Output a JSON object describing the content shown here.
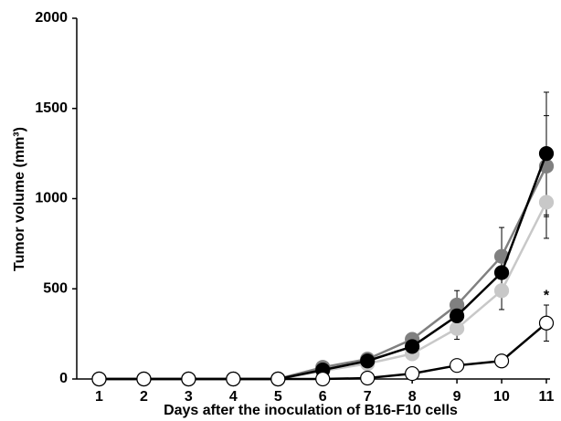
{
  "chart_data": {
    "type": "line",
    "x_label": "Days after the inoculation of B16-F10 cells",
    "y_label": "Tumor volume (mm³)",
    "x": [
      1,
      2,
      3,
      4,
      5,
      6,
      7,
      8,
      9,
      10,
      11
    ],
    "xlim": [
      0.5,
      11
    ],
    "xticks": [
      1,
      2,
      3,
      4,
      5,
      6,
      7,
      8,
      9,
      10,
      11
    ],
    "ylim": [
      0,
      2000
    ],
    "yticks": [
      0,
      500,
      1000,
      1500,
      2000
    ],
    "series": [
      {
        "color": "#c8c8c8",
        "line_color": "#c8c8c8",
        "values": [
          0,
          0,
          0,
          0,
          0,
          45,
          85,
          140,
          280,
          490,
          980
        ],
        "errors": [
          0,
          0,
          0,
          0,
          0,
          10,
          15,
          30,
          60,
          105,
          200
        ]
      },
      {
        "color": "#808080",
        "line_color": "#808080",
        "values": [
          0,
          0,
          0,
          0,
          0,
          65,
          110,
          220,
          410,
          680,
          1180
        ],
        "errors": [
          0,
          0,
          0,
          0,
          0,
          10,
          15,
          35,
          80,
          160,
          280
        ]
      },
      {
        "color": "#000000",
        "line_color": "#000000",
        "values": [
          0,
          0,
          0,
          0,
          0,
          50,
          100,
          180,
          350,
          590,
          1250
        ],
        "errors": [
          0,
          0,
          0,
          0,
          0,
          10,
          15,
          30,
          60,
          90,
          340
        ]
      },
      {
        "color": "#ffffff",
        "line_color": "#000000",
        "values": [
          0,
          0,
          0,
          0,
          0,
          0,
          5,
          30,
          75,
          100,
          310
        ],
        "errors": [
          0,
          0,
          0,
          0,
          0,
          0,
          3,
          10,
          15,
          20,
          100
        ]
      }
    ],
    "annotations": [
      {
        "text": "*",
        "x": 11,
        "y": 500
      }
    ]
  }
}
